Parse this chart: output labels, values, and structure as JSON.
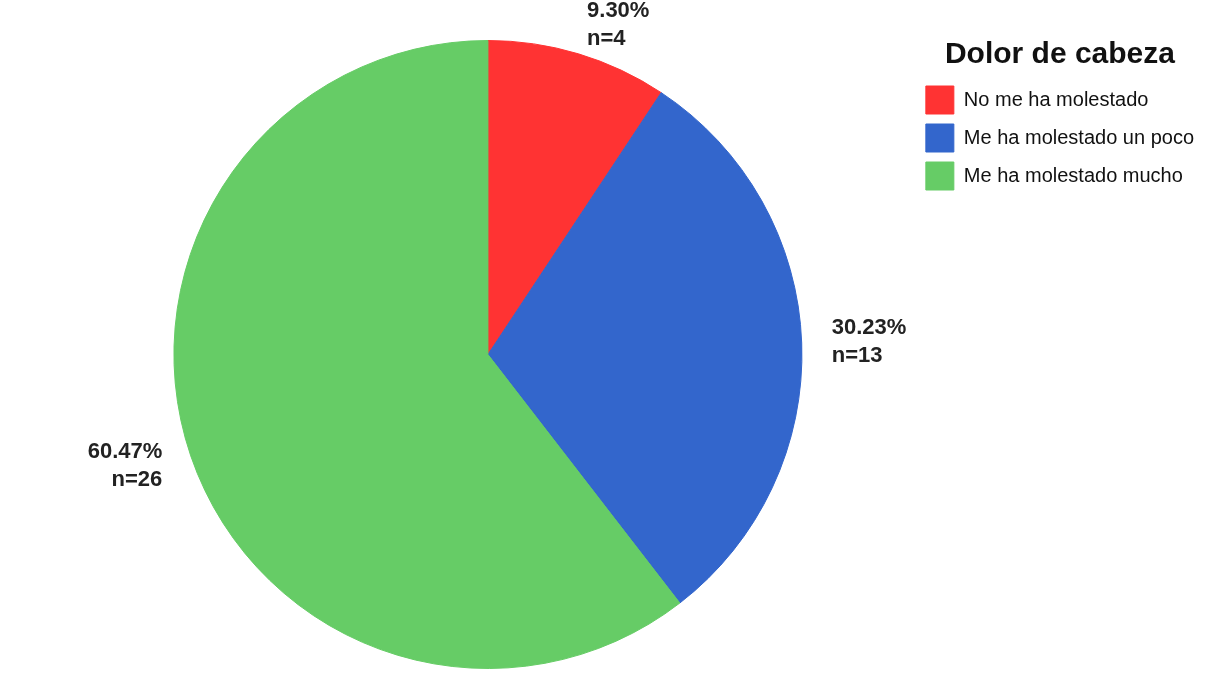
{
  "chart_data": {
    "type": "pie",
    "legend_title": "Dolor de cabeza",
    "legend": "top right",
    "categories": [
      "No me ha molestado",
      "Me ha molestado un poco",
      "Me ha molestado mucho"
    ],
    "values": [
      4,
      13,
      26
    ],
    "colors": [
      "#ff3333",
      "#3366cc",
      "#66cc66"
    ],
    "value_labels": [
      "9.30%\nn=4",
      "30.23%\nn=13",
      "60.47%\nn=26"
    ]
  }
}
